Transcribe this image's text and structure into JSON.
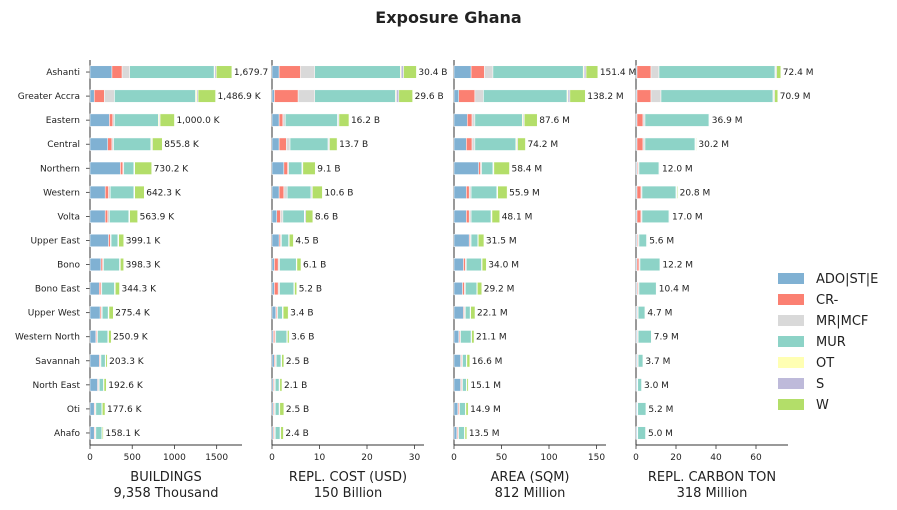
{
  "chart_data": {
    "type": "bar",
    "orientation": "horizontal-stacked",
    "title": "Exposure Ghana",
    "categories": [
      "Ashanti",
      "Greater Accra",
      "Eastern",
      "Central",
      "Northern",
      "Western",
      "Volta",
      "Upper East",
      "Bono",
      "Bono East",
      "Upper West",
      "Western North",
      "Savannah",
      "North East",
      "Oti",
      "Ahafo"
    ],
    "legend": {
      "position": "right",
      "entries": [
        {
          "name": "ADO|ST|E",
          "color": "#80b1d3"
        },
        {
          "name": "CR-",
          "color": "#fb8072"
        },
        {
          "name": "MR|MCF",
          "color": "#d9d9d9"
        },
        {
          "name": "MUR",
          "color": "#8dd3c7"
        },
        {
          "name": "OT",
          "color": "#ffffb3"
        },
        {
          "name": "S",
          "color": "#bebada"
        },
        {
          "name": "W",
          "color": "#b3de69"
        }
      ]
    },
    "panels": [
      {
        "xlabel": "BUILDINGS",
        "subtitle": "9,358 Thousand",
        "xlim": [
          0,
          1800
        ],
        "xticks": [
          0,
          500,
          1000,
          1500
        ],
        "values": [
          [
            260,
            120,
            90,
            1000,
            10,
            15,
            185
          ],
          [
            50,
            120,
            120,
            960,
            15,
            15,
            206.9
          ],
          [
            230,
            40,
            20,
            520,
            10,
            10,
            170
          ],
          [
            210,
            50,
            20,
            440,
            10,
            10,
            115.8
          ],
          [
            360,
            30,
            10,
            120,
            5,
            5,
            200.2
          ],
          [
            180,
            40,
            20,
            280,
            5,
            5,
            112.3
          ],
          [
            180,
            30,
            20,
            230,
            5,
            5,
            93.9
          ],
          [
            220,
            20,
            10,
            80,
            5,
            5,
            59.1
          ],
          [
            130,
            20,
            10,
            190,
            5,
            5,
            38.3
          ],
          [
            110,
            20,
            10,
            150,
            5,
            5,
            49.4
          ],
          [
            120,
            15,
            10,
            70,
            5,
            5,
            50.4
          ],
          [
            70,
            10,
            10,
            120,
            5,
            5,
            30.9
          ],
          [
            110,
            10,
            10,
            50,
            3,
            3,
            17.3
          ],
          [
            90,
            10,
            10,
            50,
            3,
            3,
            26.6
          ],
          [
            50,
            10,
            10,
            70,
            3,
            3,
            31.6
          ],
          [
            50,
            10,
            10,
            70,
            3,
            3,
            12.1
          ]
        ],
        "labels": [
          "1,679.7 K",
          "1,486.9 K",
          "1,000.0 K",
          "855.8 K",
          "730.2 K",
          "642.3 K",
          "563.9 K",
          "399.1 K",
          "398.3 K",
          "344.3 K",
          "275.4 K",
          "250.9 K",
          "203.3 K",
          "192.6 K",
          "177.6 K",
          "158.1 K"
        ]
      },
      {
        "xlabel": "REPL. COST (USD)",
        "subtitle": "150 Billion",
        "xlim": [
          0,
          32
        ],
        "xticks": [
          0,
          10,
          20,
          30
        ],
        "values": [
          [
            1.5,
            4.5,
            3.0,
            18.0,
            0.2,
            0.5,
            2.7
          ],
          [
            0.5,
            5.0,
            3.5,
            17.0,
            0.2,
            0.5,
            2.9
          ],
          [
            1.5,
            0.8,
            0.5,
            11.0,
            0.1,
            0.2,
            2.1
          ],
          [
            1.5,
            1.5,
            0.8,
            8.0,
            0.1,
            0.2,
            1.6
          ],
          [
            2.5,
            0.8,
            0.2,
            2.8,
            0.1,
            0.1,
            2.6
          ],
          [
            1.5,
            1.0,
            0.7,
            5.0,
            0.1,
            0.2,
            2.1
          ],
          [
            1.0,
            0.8,
            0.5,
            4.5,
            0.1,
            0.2,
            1.5
          ],
          [
            1.5,
            0.3,
            0.2,
            1.5,
            0.05,
            0.1,
            0.85
          ],
          [
            0.5,
            0.8,
            0.3,
            3.5,
            0.05,
            0.1,
            0.85
          ],
          [
            0.5,
            0.8,
            0.3,
            3.0,
            0.05,
            0.1,
            0.45
          ],
          [
            0.8,
            0.2,
            0.2,
            1.0,
            0.05,
            0.1,
            1.05
          ],
          [
            0.3,
            0.3,
            0.2,
            2.3,
            0.05,
            0.1,
            0.35
          ],
          [
            0.5,
            0.2,
            0.2,
            1.0,
            0.05,
            0.1,
            0.45
          ],
          [
            0.3,
            0.2,
            0.2,
            0.8,
            0.05,
            0.1,
            0.45
          ],
          [
            0.3,
            0.2,
            0.2,
            0.8,
            0.05,
            0.1,
            0.85
          ],
          [
            0.3,
            0.2,
            0.2,
            1.0,
            0.05,
            0.1,
            0.55
          ]
        ],
        "labels": [
          "30.4 B",
          "29.6 B",
          "16.2 B",
          "13.7 B",
          "9.1 B",
          "10.6 B",
          "8.6 B",
          "4.5 B",
          "6.1 B",
          "5.2 B",
          "3.4 B",
          "3.6 B",
          "2.5 B",
          "2.1 B",
          "2.5 B",
          "2.4 B"
        ]
      },
      {
        "xlabel": "AREA (SQM)",
        "subtitle": "812 Million",
        "xlim": [
          0,
          160
        ],
        "xticks": [
          0,
          50,
          100,
          150
        ],
        "values": [
          [
            18,
            14,
            9,
            95,
            1,
            2,
            12.4
          ],
          [
            5,
            17,
            9,
            88,
            1,
            2,
            16.2
          ],
          [
            14,
            5,
            3,
            50,
            1,
            1,
            13.6
          ],
          [
            13,
            6,
            3,
            43,
            1,
            1,
            8.2
          ],
          [
            26,
            2,
            1,
            12,
            0.5,
            0.5,
            16.4
          ],
          [
            13,
            3,
            2,
            27,
            0.5,
            0.5,
            9.9
          ],
          [
            13,
            3,
            2,
            21,
            0.5,
            0.5,
            8.1
          ],
          [
            16,
            1,
            1,
            7,
            0.3,
            0.3,
            5.9
          ],
          [
            10,
            2,
            1,
            16,
            0.3,
            0.3,
            4.4
          ],
          [
            9,
            2,
            1,
            12,
            0.3,
            0.3,
            4.6
          ],
          [
            10,
            1,
            1,
            5,
            0.3,
            0.3,
            4.5
          ],
          [
            5,
            1,
            1,
            11,
            0.3,
            0.3,
            2.5
          ],
          [
            7,
            1,
            1,
            4,
            0.3,
            0.3,
            3.0
          ],
          [
            7,
            1,
            1,
            4,
            0.3,
            0.3,
            1.5
          ],
          [
            4,
            1,
            1,
            6,
            0.3,
            0.3,
            2.3
          ],
          [
            3,
            1,
            1,
            6,
            0.3,
            0.3,
            1.9
          ]
        ],
        "labels": [
          "151.4 M",
          "138.2 M",
          "87.6 M",
          "74.2 M",
          "58.4 M",
          "55.9 M",
          "48.1 M",
          "31.5 M",
          "34.0 M",
          "29.2 M",
          "22.1 M",
          "21.1 M",
          "16.6 M",
          "15.1 M",
          "14.9 M",
          "13.5 M"
        ]
      },
      {
        "xlabel": "REPL. CARBON TON",
        "subtitle": "318 Million",
        "xlim": [
          0,
          76
        ],
        "xticks": [
          0,
          20,
          40,
          60
        ],
        "values": [
          [
            0.5,
            7,
            4,
            58,
            0.3,
            0.5,
            2.1
          ],
          [
            0.5,
            7,
            5,
            56,
            0.3,
            0.5,
            1.6
          ],
          [
            0.5,
            3,
            1,
            32,
            0.2,
            0.2,
            0.0
          ],
          [
            0.5,
            3,
            1,
            25,
            0.2,
            0.2,
            0.3
          ],
          [
            0.5,
            0.5,
            0.5,
            10,
            0.2,
            0.2,
            0.1
          ],
          [
            0.5,
            2,
            0.5,
            17,
            0.2,
            0.2,
            0.4
          ],
          [
            0.5,
            2,
            0.5,
            13.5,
            0.2,
            0.2,
            0.1
          ],
          [
            0.5,
            0.5,
            0.5,
            3.8,
            0.1,
            0.1,
            0.1
          ],
          [
            0.5,
            1,
            0.5,
            10,
            0.1,
            0.1,
            0.0
          ],
          [
            0.5,
            0.5,
            0.5,
            8.6,
            0.1,
            0.1,
            0.1
          ],
          [
            0.5,
            0.3,
            0.3,
            3.4,
            0.1,
            0.1,
            0.0
          ],
          [
            0.5,
            0.3,
            0.3,
            6.6,
            0.1,
            0.1,
            0.0
          ],
          [
            0.5,
            0.3,
            0.3,
            2.4,
            0.1,
            0.1,
            0.0
          ],
          [
            0.5,
            0.2,
            0.2,
            1.9,
            0.1,
            0.1,
            0.0
          ],
          [
            0.5,
            0.2,
            0.2,
            4.1,
            0.1,
            0.1,
            0.0
          ],
          [
            0.5,
            0.2,
            0.2,
            3.9,
            0.1,
            0.1,
            0.0
          ]
        ],
        "labels": [
          "72.4 M",
          "70.9 M",
          "36.9 M",
          "30.2 M",
          "12.0 M",
          "20.8 M",
          "17.0 M",
          "5.6 M",
          "12.2 M",
          "10.4 M",
          "4.7 M",
          "7.9 M",
          "3.7 M",
          "3.0 M",
          "5.2 M",
          "5.0 M"
        ]
      }
    ]
  }
}
